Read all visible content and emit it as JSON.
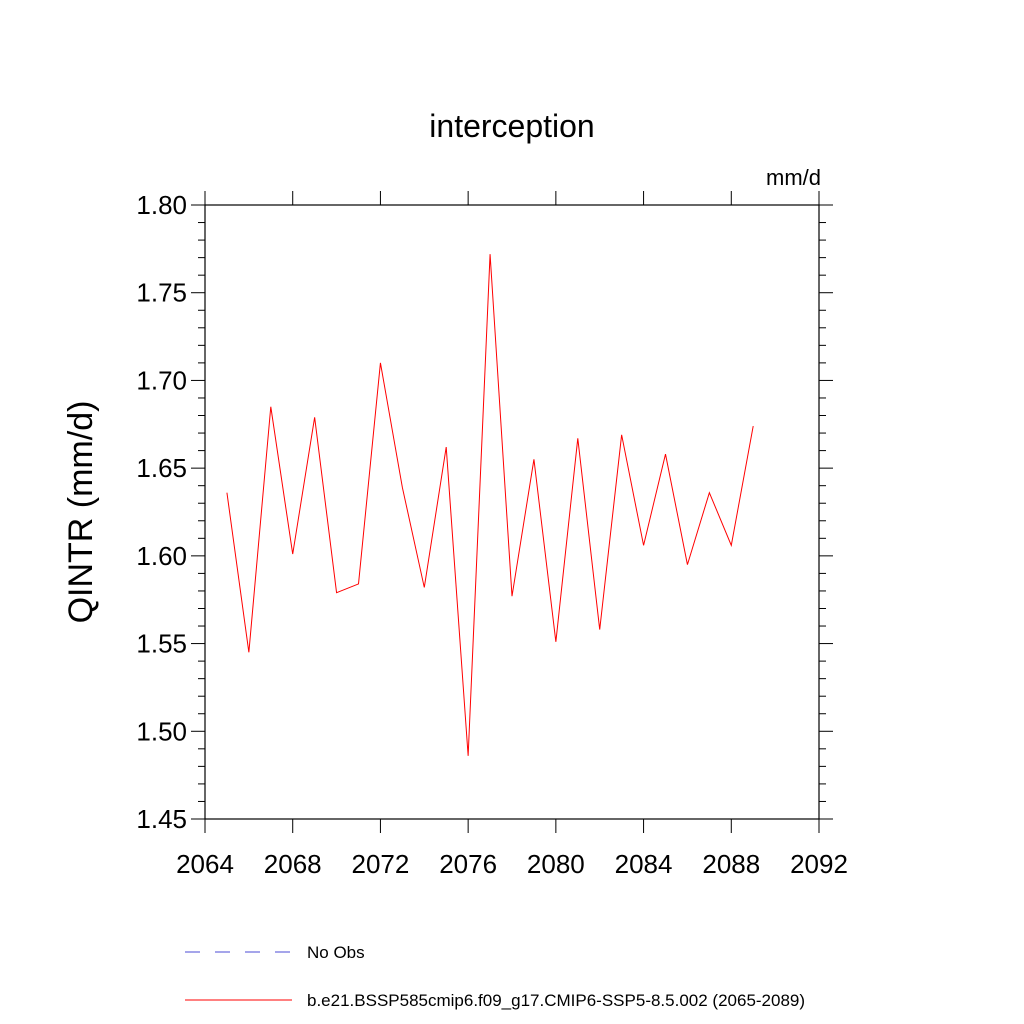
{
  "chart_data": {
    "type": "line",
    "title": "interception",
    "units_label": "mm/d",
    "ylabel": "QINTR  (mm/d)",
    "xlabel": "",
    "xlim": [
      2064,
      2092
    ],
    "ylim": [
      1.45,
      1.8
    ],
    "x_ticks": [
      2064,
      2068,
      2072,
      2076,
      2080,
      2084,
      2088,
      2092
    ],
    "x_tick_labels": [
      "2064",
      "2068",
      "2072",
      "2076",
      "2080",
      "2084",
      "2088",
      "2092"
    ],
    "y_ticks": [
      1.45,
      1.5,
      1.55,
      1.6,
      1.65,
      1.7,
      1.75,
      1.8
    ],
    "y_tick_labels": [
      "1.45",
      "1.50",
      "1.55",
      "1.60",
      "1.65",
      "1.70",
      "1.75",
      "1.80"
    ],
    "grid": false,
    "legend_position": "bottom",
    "series": [
      {
        "name": "b.e21.BSSP585cmip6.f09_g17.CMIP6-SSP5-8.5.002 (2065-2089)",
        "color": "#ff0000",
        "style": "solid",
        "x": [
          2065,
          2066,
          2067,
          2068,
          2069,
          2070,
          2071,
          2072,
          2073,
          2074,
          2075,
          2076,
          2077,
          2078,
          2079,
          2080,
          2081,
          2082,
          2083,
          2084,
          2085,
          2086,
          2087,
          2088,
          2089
        ],
        "y": [
          1.636,
          1.545,
          1.685,
          1.601,
          1.679,
          1.579,
          1.584,
          1.71,
          1.639,
          1.582,
          1.662,
          1.486,
          1.772,
          1.577,
          1.655,
          1.551,
          1.667,
          1.558,
          1.669,
          1.606,
          1.658,
          1.595,
          1.636,
          1.606,
          1.674
        ]
      }
    ],
    "legend": [
      {
        "label": "No Obs",
        "color": "#4b4bd6",
        "style": "dashed"
      },
      {
        "label": "b.e21.BSSP585cmip6.f09_g17.CMIP6-SSP5-8.5.002 (2065-2089)",
        "color": "#ff0000",
        "style": "solid"
      }
    ]
  }
}
